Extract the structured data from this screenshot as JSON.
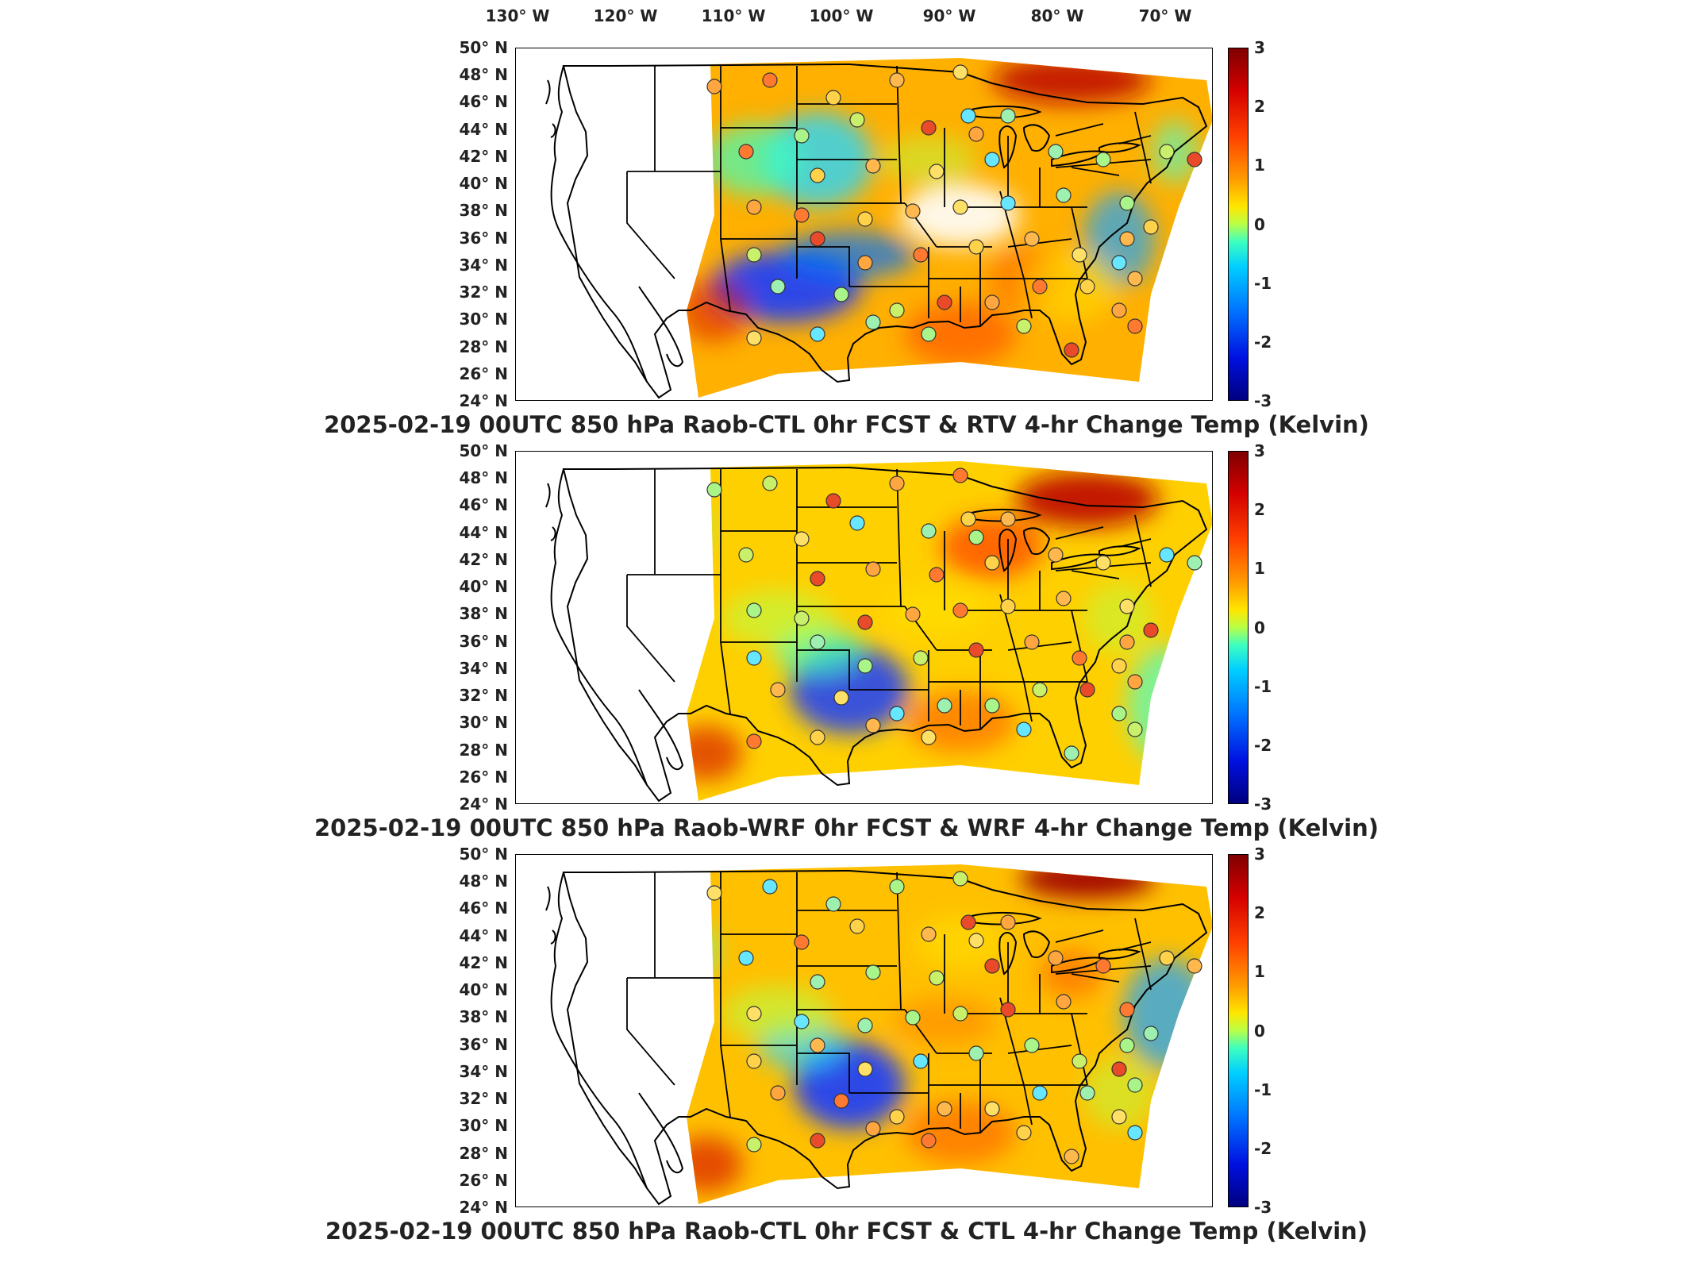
{
  "longitude_labels": [
    "130° W",
    "120° W",
    "110° W",
    "100° W",
    "90° W",
    "80° W",
    "70° W"
  ],
  "latitude_labels": [
    "50° N",
    "48° N",
    "46° N",
    "44° N",
    "42° N",
    "40° N",
    "38° N",
    "36° N",
    "34° N",
    "32° N",
    "30° N",
    "28° N",
    "26° N",
    "24° N"
  ],
  "colorbar_ticks": [
    "3",
    "2",
    "1",
    "0",
    "-1",
    "-2",
    "-3"
  ],
  "colors": {
    "scale_high": "#7f0000",
    "scale_mid": "#b8ff47",
    "scale_low": "#00007f",
    "land_outline": "#000000",
    "no_data": "#ffffff"
  },
  "panels": [
    {
      "title": "2025-02-19 00UTC 850 hPa Raob-CTL 0hr FCST & RTV 4-hr Change Temp (Kelvin)",
      "theme": "rtv"
    },
    {
      "title": "2025-02-19 00UTC 850 hPa Raob-WRF 0hr FCST & WRF 4-hr Change Temp (Kelvin)",
      "theme": "wrf"
    },
    {
      "title": "2025-02-19 00UTC 850 hPa Raob-CTL 0hr FCST & CTL 4-hr Change Temp (Kelvin)",
      "theme": "ctl"
    }
  ]
}
